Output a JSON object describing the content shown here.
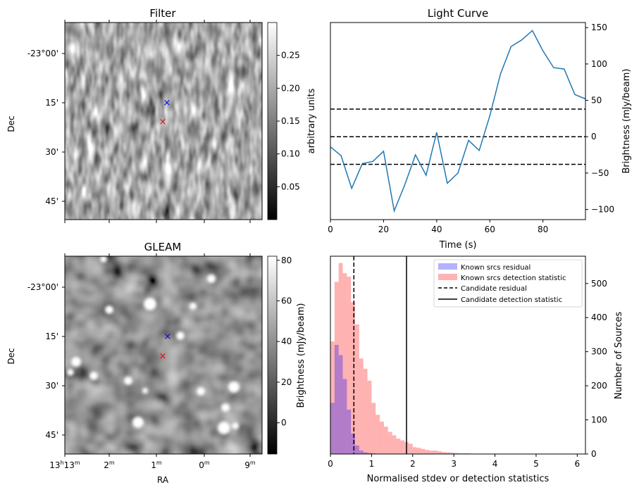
{
  "chart_data": [
    {
      "type": "heatmap",
      "title": "Filter",
      "ylabel": "Dec",
      "yticks": [
        "-23°00'",
        "15'",
        "30'",
        "45'"
      ],
      "colorbar": {
        "label": "arbitrary units",
        "ticks": [
          "0.05",
          "0.10",
          "0.15",
          "0.20",
          "0.25"
        ],
        "range": [
          0.0,
          0.3
        ]
      },
      "markers": [
        {
          "symbol": "x",
          "color": "#0000ff"
        },
        {
          "symbol": "x",
          "color": "#ff0000"
        }
      ]
    },
    {
      "type": "line",
      "title": "Light Curve",
      "xlabel": "Time (s)",
      "ylabel": "Brightness (mJy/beam)",
      "xticks": [
        "0",
        "20",
        "40",
        "60",
        "80"
      ],
      "yticks": [
        "−100",
        "−50",
        "0",
        "50",
        "100",
        "150"
      ],
      "xlim": [
        0,
        96
      ],
      "ylim": [
        -114,
        157
      ],
      "line_color": "#1f77b4",
      "x": [
        0,
        4,
        8,
        12,
        16,
        20,
        24,
        28,
        32,
        36,
        40,
        44,
        48,
        52,
        56,
        60,
        64,
        68,
        72,
        76,
        80,
        84,
        88,
        92,
        96
      ],
      "y": [
        -14,
        -26,
        -71,
        -37,
        -34,
        -20,
        -102,
        -66,
        -25,
        -53,
        6,
        -64,
        -50,
        -5,
        -19,
        29,
        86,
        124,
        133,
        146,
        118,
        95,
        93,
        58,
        52
      ],
      "hlines": [
        {
          "y": 38,
          "style": "dashed"
        },
        {
          "y": 0,
          "style": "dashed"
        },
        {
          "y": -38,
          "style": "dashed"
        }
      ]
    },
    {
      "type": "heatmap",
      "title": "GLEAM",
      "xlabel": "RA",
      "ylabel": "Dec",
      "xticks": [
        "13h13m",
        "12m",
        "11m",
        "10m",
        "09m"
      ],
      "yticks": [
        "-23°00'",
        "15'",
        "30'",
        "45'"
      ],
      "colorbar": {
        "label": "Brightness (mJy/beam)",
        "ticks": [
          "0",
          "20",
          "40",
          "60",
          "80"
        ],
        "range": [
          -15,
          82
        ]
      },
      "markers": [
        {
          "symbol": "x",
          "color": "#0000ff"
        },
        {
          "symbol": "x",
          "color": "#ff0000"
        }
      ]
    },
    {
      "type": "histogram",
      "xlabel": "Normalised stdev or detection statistics",
      "ylabel": "Number of Sources",
      "xticks": [
        "0",
        "1",
        "2",
        "3",
        "4",
        "5",
        "6"
      ],
      "yticks": [
        "0",
        "100",
        "200",
        "300",
        "400",
        "500"
      ],
      "xlim": [
        0,
        6.2
      ],
      "ylim": [
        0,
        580
      ],
      "bin_width": 0.1,
      "series": [
        {
          "name": "Known srcs residual",
          "color": "#0000ff",
          "alpha": 0.3,
          "values": [
            150,
            320,
            290,
            220,
            130,
            60,
            25,
            10,
            5,
            3,
            2,
            1
          ]
        },
        {
          "name": "Known srcs detection statistic",
          "color": "#ff0000",
          "alpha": 0.3,
          "values": [
            330,
            505,
            560,
            530,
            520,
            445,
            380,
            280,
            250,
            215,
            150,
            115,
            95,
            80,
            65,
            55,
            45,
            40,
            35,
            30,
            20,
            18,
            15,
            12,
            10,
            10,
            8,
            6,
            5,
            4,
            3,
            2,
            2,
            2,
            1,
            1,
            1,
            1,
            1,
            1,
            1,
            0,
            1,
            0,
            0,
            0,
            0,
            0,
            0,
            1,
            0,
            0,
            0,
            0,
            0,
            0,
            0,
            0,
            1,
            1,
            1
          ]
        }
      ],
      "vlines": [
        {
          "name": "Candidate residual",
          "x": 0.57,
          "style": "dashed"
        },
        {
          "name": "Candidate detection statistic",
          "x": 1.85,
          "style": "solid"
        }
      ]
    }
  ]
}
